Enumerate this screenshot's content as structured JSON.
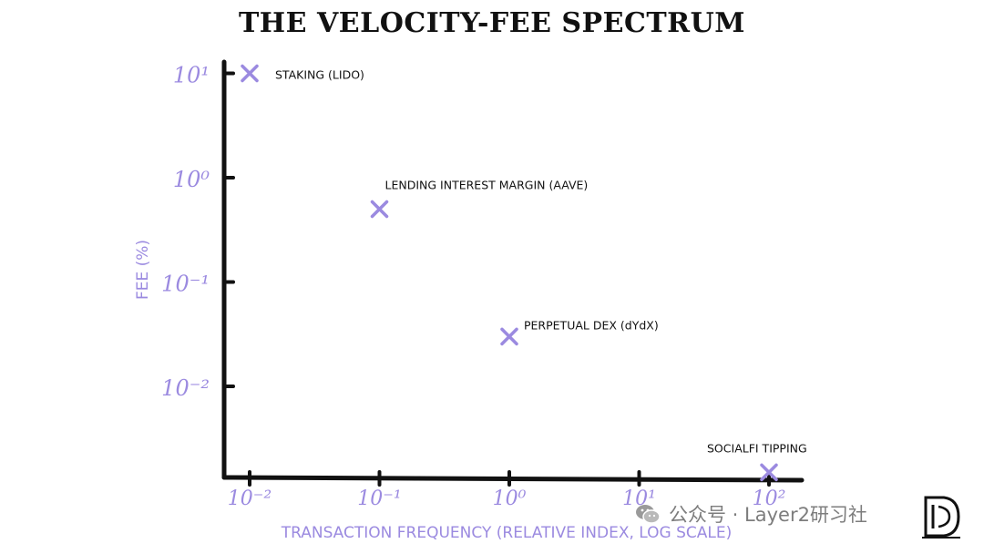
{
  "chart_data": {
    "type": "scatter",
    "title": "THE VELOCITY-FEE SPECTRUM",
    "xlabel": "TRANSACTION FREQUENCY (RELATIVE INDEX, LOG SCALE)",
    "ylabel": "FEE (%)",
    "x_scale": "log",
    "y_scale": "log",
    "xlim": [
      0.01,
      100
    ],
    "ylim": [
      0.001,
      10
    ],
    "x_ticks": [
      {
        "value": 0.01,
        "label": "10⁻²"
      },
      {
        "value": 0.1,
        "label": "10⁻¹"
      },
      {
        "value": 1,
        "label": "10⁰"
      },
      {
        "value": 10,
        "label": "10¹"
      },
      {
        "value": 100,
        "label": "10²"
      }
    ],
    "y_ticks": [
      {
        "value": 10,
        "label": "10¹"
      },
      {
        "value": 1,
        "label": "10⁰"
      },
      {
        "value": 0.1,
        "label": "10⁻¹"
      },
      {
        "value": 0.01,
        "label": "10⁻²"
      }
    ],
    "points": [
      {
        "label": "STAKING (LIDO)",
        "x": 0.01,
        "y": 10
      },
      {
        "label": "LENDING INTEREST MARGIN (AAVE)",
        "x": 0.1,
        "y": 0.5
      },
      {
        "label": "PERPETUAL DEX (dYdX)",
        "x": 1,
        "y": 0.03
      },
      {
        "label": "SOCIALFI TIPPING",
        "x": 100,
        "y": 0.0015
      }
    ],
    "colors": {
      "accent": "#9b8ae0",
      "axis": "#111111",
      "label": "#111111"
    }
  },
  "watermark": {
    "text": "公众号 · Layer2研习社",
    "icon": "wechat-icon"
  },
  "logo": {
    "icon": "brand-logo-icon"
  }
}
